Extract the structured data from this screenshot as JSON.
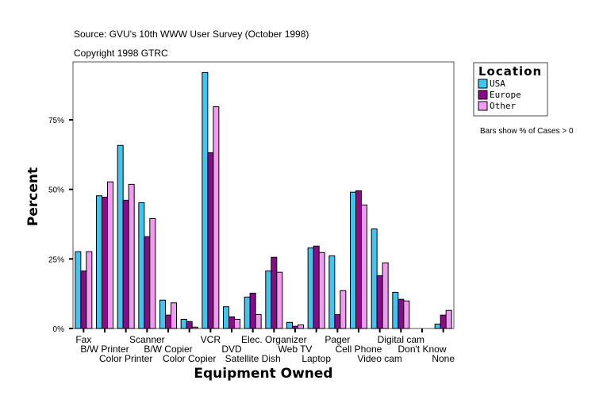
{
  "chart_data": {
    "type": "bar",
    "subtitle_lines": [
      "Source: GVU's 10th WWW User Survey (October 1998)",
      "Copyright 1998 GTRC"
    ],
    "xlabel": "Equipment Owned",
    "ylabel": "Percent",
    "ylim": [
      0,
      95
    ],
    "yticks": [
      0,
      25,
      50,
      75
    ],
    "ytick_labels": [
      "0%",
      "25%",
      "50%",
      "75%"
    ],
    "grid": false,
    "legend": {
      "title": "Location",
      "placement": "right"
    },
    "note": "Bars show % of Cases > 0",
    "categories": [
      "Fax",
      "B/W Printer",
      "Color Printer",
      "Scanner",
      "B/W Copier",
      "Color Copier",
      "VCR",
      "DVD",
      "Satellite Dish",
      "Elec. Organizer",
      "Web TV",
      "Laptop",
      "Pager",
      "Cell Phone",
      "Video cam",
      "Digital cam",
      "Don't Know",
      "None"
    ],
    "series": [
      {
        "name": "USA",
        "color": "#40c4f0",
        "values": [
          27.6,
          47.7,
          65.8,
          45.2,
          10.2,
          3.3,
          92.0,
          7.8,
          11.3,
          20.7,
          2.2,
          29.0,
          26.1,
          49.0,
          35.8,
          13.0,
          0,
          1.6
        ]
      },
      {
        "name": "Europe",
        "color": "#8b0a8b",
        "values": [
          20.7,
          47.2,
          46.1,
          33.0,
          4.8,
          2.5,
          63.2,
          4.2,
          12.7,
          25.6,
          0.8,
          29.6,
          5.0,
          49.5,
          19.0,
          10.5,
          0,
          4.8
        ]
      },
      {
        "name": "Other",
        "color": "#f19cf1",
        "values": [
          27.6,
          52.7,
          51.8,
          39.5,
          9.2,
          0.5,
          79.7,
          3.3,
          5.0,
          20.2,
          1.3,
          27.3,
          13.6,
          44.4,
          23.6,
          9.9,
          0,
          6.5
        ]
      }
    ]
  }
}
